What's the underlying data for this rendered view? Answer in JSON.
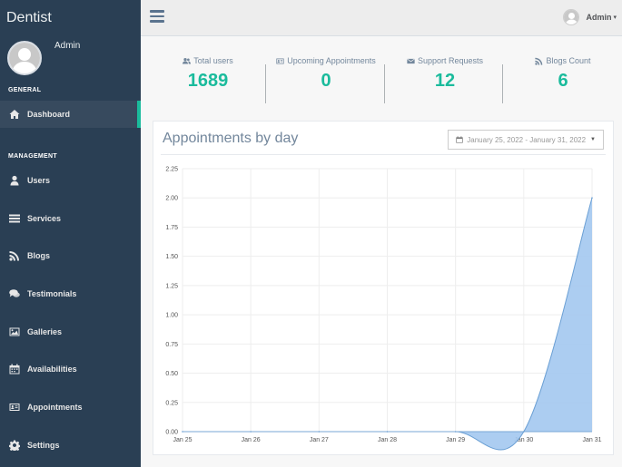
{
  "sidebar": {
    "brand": "Dentist",
    "profile_name": "Admin",
    "general_label": "GENERAL",
    "management_label": "MANAGEMENT",
    "items": [
      {
        "label": "Dashboard",
        "icon": "home-icon"
      },
      {
        "label": "Users",
        "icon": "user-icon"
      },
      {
        "label": "Services",
        "icon": "list-icon"
      },
      {
        "label": "Blogs",
        "icon": "rss-icon"
      },
      {
        "label": "Testimonials",
        "icon": "comments-icon"
      },
      {
        "label": "Galleries",
        "icon": "image-icon"
      },
      {
        "label": "Availabilities",
        "icon": "calendar-icon"
      },
      {
        "label": "Appointments",
        "icon": "id-card-icon"
      },
      {
        "label": "Settings",
        "icon": "gear-icon"
      }
    ]
  },
  "topnav": {
    "user_name": "Admin"
  },
  "tiles": [
    {
      "label": "Total users",
      "value": "1689",
      "icon": "users-icon"
    },
    {
      "label": "Upcoming Appointments",
      "value": "0",
      "icon": "id-card-icon"
    },
    {
      "label": "Support Requests",
      "value": "12",
      "icon": "envelope-icon"
    },
    {
      "label": "Blogs Count",
      "value": "6",
      "icon": "rss-icon"
    }
  ],
  "panel": {
    "title": "Appointments by day",
    "date_range": "January 25, 2022 - January 31, 2022"
  },
  "colors": {
    "sidebar_bg": "#2a3f54",
    "accent": "#1abb9c",
    "chart_fill": "#a3c8ef",
    "chart_line": "#6a9fd4"
  },
  "chart_data": {
    "type": "area",
    "categories": [
      "Jan 25",
      "Jan 26",
      "Jan 27",
      "Jan 28",
      "Jan 29",
      "Jan 30",
      "Jan 31"
    ],
    "values": [
      0,
      0,
      0,
      0,
      0,
      0,
      2
    ],
    "ylim": [
      0,
      2.25
    ],
    "yticks": [
      "0.00",
      "0.25",
      "0.50",
      "0.75",
      "1.00",
      "1.25",
      "1.50",
      "1.75",
      "2.00",
      "2.25"
    ],
    "grid": true,
    "title": "",
    "xlabel": "",
    "ylabel": ""
  }
}
